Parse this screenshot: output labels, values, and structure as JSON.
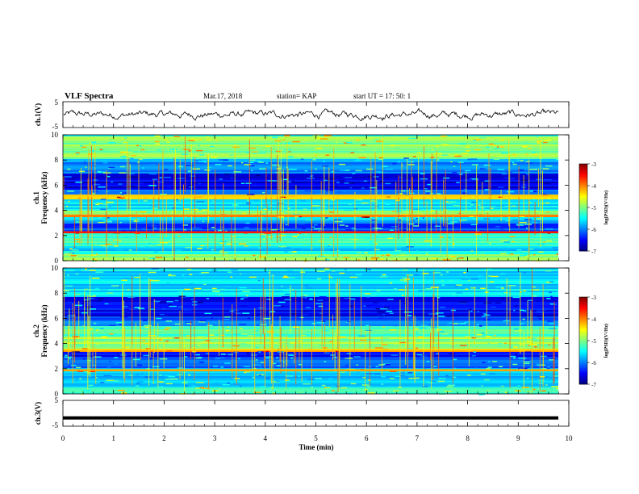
{
  "header": {
    "title": "VLF Spectra",
    "date": "Mar.17, 2018",
    "station": "station= KAP",
    "start": "start  UT =   17: 50: 1"
  },
  "chart_data": [
    {
      "type": "line",
      "ylabel": "ch.1(V)",
      "ylim": [
        -5,
        5
      ],
      "y_ticks": [
        "5",
        "-5"
      ],
      "xlim": [
        0,
        10
      ],
      "description_values": "noisy waveform around 0 V, amplitude roughly ±1.5 V, from t=0 to t≈9.8 min"
    },
    {
      "type": "heatmap",
      "series_label": "ch.1",
      "ylabel": "Frequency (kHz)",
      "ylim": [
        0,
        10
      ],
      "y_ticks": [
        "0",
        "2",
        "4",
        "6",
        "8",
        "10"
      ],
      "xlim": [
        0,
        10
      ],
      "colorbar": {
        "label": "log(PSD)(V²/Hz)",
        "range": [
          -7,
          -3
        ],
        "ticks": [
          "-3",
          "-4",
          "-5",
          "-6",
          "-7"
        ]
      },
      "bands_khz": [
        {
          "f0": 0.0,
          "f1": 0.6,
          "level": -5.0
        },
        {
          "f0": 0.6,
          "f1": 1.2,
          "level": -5.6
        },
        {
          "f0": 1.2,
          "f1": 2.2,
          "level": -5.3
        },
        {
          "f0": 2.2,
          "f1": 2.35,
          "level": -3.6
        },
        {
          "f0": 2.35,
          "f1": 3.0,
          "level": -6.2
        },
        {
          "f0": 3.0,
          "f1": 3.5,
          "level": -5.8
        },
        {
          "f0": 3.5,
          "f1": 3.7,
          "level": -4.0
        },
        {
          "f0": 3.7,
          "f1": 4.0,
          "level": -5.0
        },
        {
          "f0": 4.0,
          "f1": 5.0,
          "level": -5.6
        },
        {
          "f0": 5.0,
          "f1": 5.3,
          "level": -4.3
        },
        {
          "f0": 5.3,
          "f1": 5.7,
          "level": -6.2
        },
        {
          "f0": 5.7,
          "f1": 7.0,
          "level": -6.6
        },
        {
          "f0": 7.0,
          "f1": 8.2,
          "level": -5.9
        },
        {
          "f0": 8.2,
          "f1": 10.0,
          "level": -5.0
        }
      ]
    },
    {
      "type": "heatmap",
      "series_label": "ch.2",
      "ylabel": "Frequency (kHz)",
      "ylim": [
        0,
        10
      ],
      "y_ticks": [
        "0",
        "2",
        "4",
        "6",
        "8",
        "10"
      ],
      "xlim": [
        0,
        10
      ],
      "colorbar": {
        "label": "log(PSD)(V²/Hz)",
        "range": [
          -7,
          -3
        ],
        "ticks": [
          "-3",
          "-4",
          "-5",
          "-6",
          "-7"
        ]
      },
      "bands_khz": [
        {
          "f0": 0.0,
          "f1": 0.6,
          "level": -5.1
        },
        {
          "f0": 0.6,
          "f1": 1.8,
          "level": -5.7
        },
        {
          "f0": 1.8,
          "f1": 2.0,
          "level": -4.2
        },
        {
          "f0": 2.0,
          "f1": 3.0,
          "level": -6.0
        },
        {
          "f0": 3.0,
          "f1": 3.4,
          "level": -6.5
        },
        {
          "f0": 3.4,
          "f1": 3.6,
          "level": -4.3
        },
        {
          "f0": 3.6,
          "f1": 4.6,
          "level": -4.9
        },
        {
          "f0": 4.6,
          "f1": 5.4,
          "level": -5.3
        },
        {
          "f0": 5.4,
          "f1": 6.2,
          "level": -6.1
        },
        {
          "f0": 6.2,
          "f1": 7.8,
          "level": -6.5
        },
        {
          "f0": 7.8,
          "f1": 10.0,
          "level": -5.6
        }
      ]
    },
    {
      "type": "line",
      "ylabel": "ch.3(V)",
      "ylim": [
        -5,
        5
      ],
      "y_ticks": [
        "5",
        "0",
        "-5"
      ],
      "xlim": [
        0,
        10
      ],
      "xlabel": "Time  (min)",
      "x_ticks": [
        "0",
        "1",
        "2",
        "3",
        "4",
        "5",
        "6",
        "7",
        "8",
        "9",
        "10"
      ],
      "constant_value": -1.8
    }
  ]
}
